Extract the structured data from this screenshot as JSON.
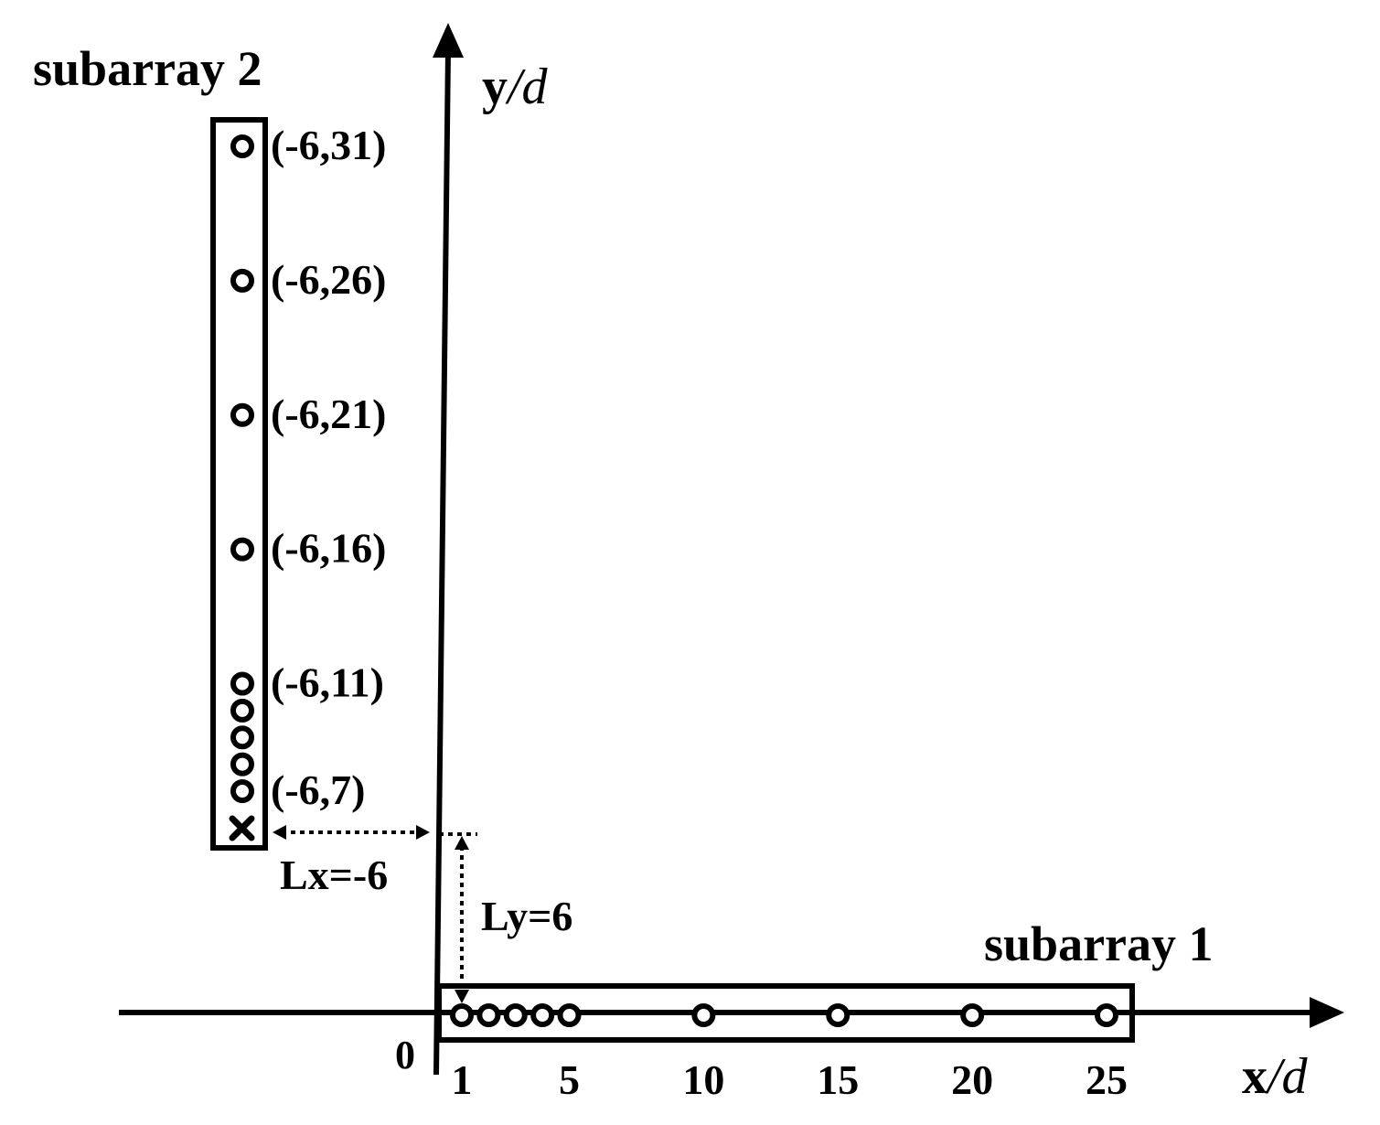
{
  "titles": {
    "subarray2": "subarray 2",
    "subarray1": "subarray 1"
  },
  "axes": {
    "y_label_main": "y",
    "y_label_unit": "/d",
    "x_label_main": "x",
    "x_label_unit": "/d",
    "origin": "0"
  },
  "subarray1": {
    "sensor_positions_x": [
      1,
      2,
      3,
      4,
      5,
      10,
      15,
      20,
      25
    ],
    "tick_labels": [
      "1",
      "5",
      "10",
      "15",
      "20",
      "25"
    ]
  },
  "subarray2": {
    "sensor_positions_y": [
      7,
      8,
      9,
      10,
      11,
      16,
      21,
      26,
      31
    ],
    "offset_marker": "x",
    "coordinate_labels": [
      "(-6,31)",
      "(-6,26)",
      "(-6,21)",
      "(-6,16)",
      "(-6,11)",
      "(-6,7)"
    ]
  },
  "offsets": {
    "lx_label": "Lx=-6",
    "ly_label": "Ly=6"
  },
  "colors": {
    "stroke": "#000000",
    "background": "#ffffff"
  }
}
